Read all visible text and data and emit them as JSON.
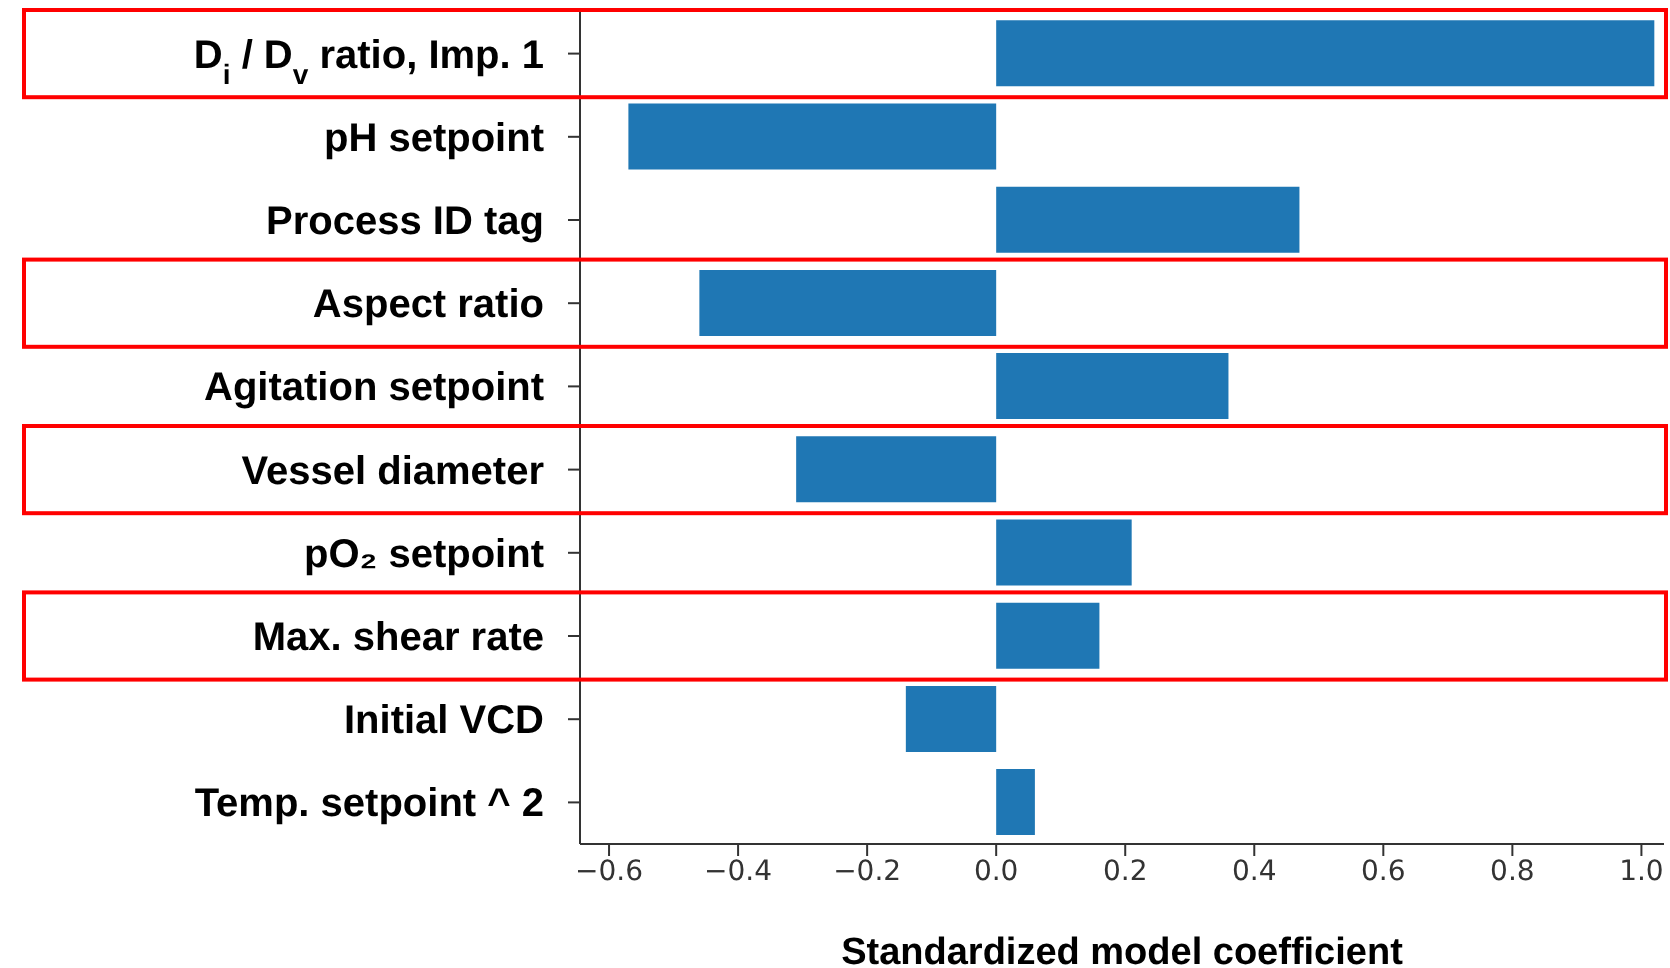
{
  "chart_data": {
    "type": "bar",
    "orientation": "horizontal",
    "xlabel": "Standardized model coefficient",
    "categories": [
      "D$_{i}$ / D$_{v}$ ratio, Imp. 1",
      "pH setpoint",
      "Process ID tag",
      "Aspect ratio",
      "Agitation setpoint",
      "Vessel diameter",
      "pO₂ setpoint",
      "Max. shear rate",
      "Initial VCD",
      "Temp. setpoint ^ 2"
    ],
    "values": [
      1.02,
      -0.57,
      0.47,
      -0.46,
      0.36,
      -0.31,
      0.21,
      0.16,
      -0.14,
      0.06
    ],
    "color": "#1f77b4",
    "xlim": [
      -0.645,
      1.035
    ],
    "xticks": [
      {
        "value": -0.6,
        "label": "−0.6"
      },
      {
        "value": -0.4,
        "label": "−0.4"
      },
      {
        "value": -0.2,
        "label": "−0.2"
      },
      {
        "value": 0,
        "label": "0.0"
      },
      {
        "value": 0.2,
        "label": "0.2"
      },
      {
        "value": 0.4,
        "label": "0.4"
      },
      {
        "value": 0.6,
        "label": "0.6"
      },
      {
        "value": 0.8,
        "label": "0.8"
      },
      {
        "value": 1,
        "label": "1.0"
      }
    ],
    "grid": false,
    "legend": false
  }
}
